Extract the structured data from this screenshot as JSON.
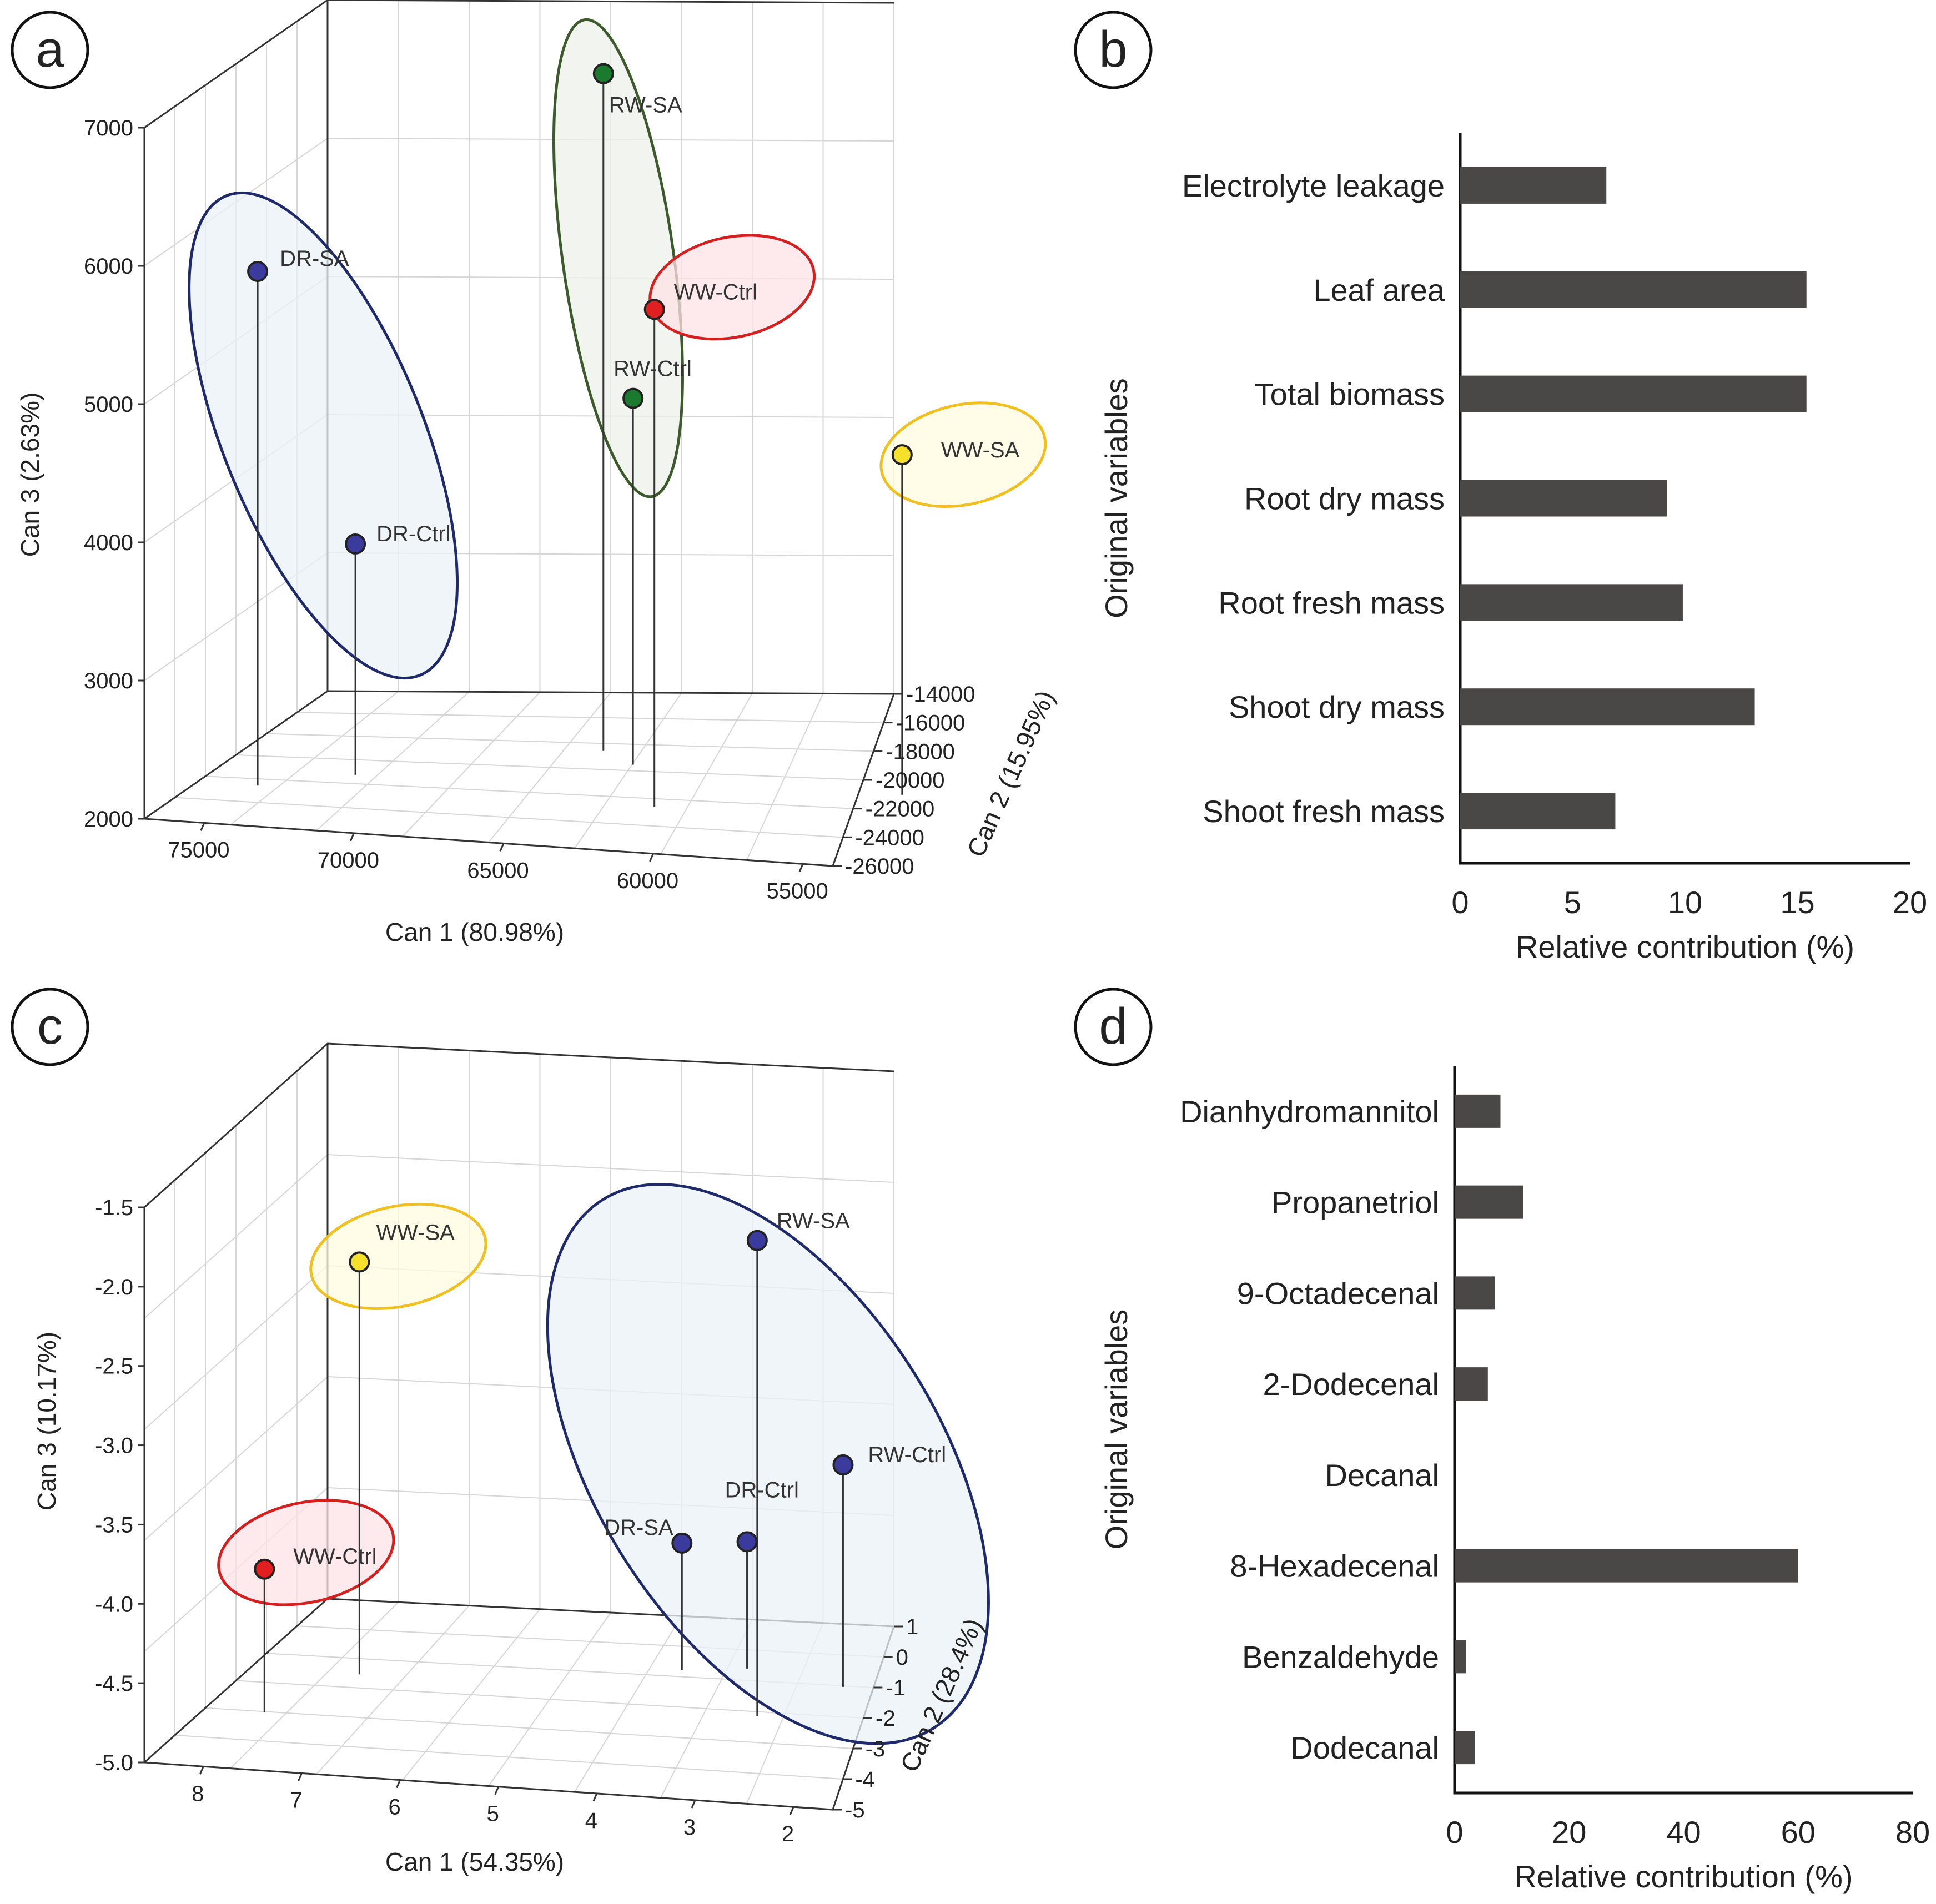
{
  "panels": [
    {
      "letter": "a",
      "chart_data": {
        "type": "scatter",
        "title": "",
        "xlabel": "Can 1 (80.98%)",
        "ylabel": "Can 3 (2.63%)",
        "zlabel": "Can 2 (15.95%)",
        "x_ticks": [
          "75000",
          "70000",
          "65000",
          "60000",
          "55000"
        ],
        "y_ticks": [
          "2000",
          "3000",
          "4000",
          "5000",
          "6000",
          "7000"
        ],
        "z_ticks": [
          "-26000",
          "-24000",
          "-22000",
          "-20000",
          "-18000",
          "-16000",
          "-14000"
        ],
        "xlim": [
          77000,
          54000
        ],
        "ylim": [
          2000,
          7000
        ],
        "zlim": [
          -26000,
          -14000
        ],
        "series": [
          {
            "name": "DR-SA",
            "can1": 75000,
            "can2": -22500,
            "can3": 5720,
            "color": "#3b3b9e"
          },
          {
            "name": "DR-Ctrl",
            "can1": 72500,
            "can2": -21000,
            "can3": 3670,
            "color": "#3b3b9e"
          },
          {
            "name": "RW-SA",
            "can1": 66000,
            "can2": -17500,
            "can3": 6900,
            "color": "#1a7a2e"
          },
          {
            "name": "RW-Ctrl",
            "can1": 64500,
            "can2": -18500,
            "can3": 4650,
            "color": "#1a7a2e"
          },
          {
            "name": "WW-Ctrl",
            "can1": 62000,
            "can2": -22000,
            "can3": 5600,
            "color": "#e02020"
          },
          {
            "name": "WW-SA",
            "can1": 55000,
            "can2": -19500,
            "can3": 4460,
            "color": "#f5e02a"
          }
        ],
        "groups": [
          {
            "members": [
              "DR-SA",
              "DR-Ctrl"
            ],
            "stroke": "#1f2a6b",
            "fill": "#eaf1f6"
          },
          {
            "members": [
              "RW-SA",
              "RW-Ctrl"
            ],
            "stroke": "#3c5a2c",
            "fill": "#eef0ea"
          },
          {
            "members": [
              "WW-Ctrl"
            ],
            "stroke": "#d62020",
            "fill": "#fde3e6"
          },
          {
            "members": [
              "WW-SA"
            ],
            "stroke": "#f0c020",
            "fill": "#fffbe0"
          }
        ]
      }
    },
    {
      "letter": "b",
      "chart_data": {
        "type": "bar",
        "orientation": "horizontal",
        "title": "",
        "categories": [
          "Electrolyte leakage",
          "Leaf area",
          "Total biomass",
          "Root dry mass",
          "Root fresh mass",
          "Shoot dry mass",
          "Shoot fresh mass"
        ],
        "values": [
          6.5,
          15.4,
          15.4,
          9.2,
          9.9,
          13.1,
          6.9
        ],
        "xlabel": "Relative contribution (%)",
        "ylabel": "Original variables",
        "xlim": [
          0,
          20
        ],
        "x_ticks": [
          "0",
          "5",
          "10",
          "15",
          "20"
        ],
        "bar_color": "#4a4847"
      }
    },
    {
      "letter": "c",
      "chart_data": {
        "type": "scatter",
        "title": "",
        "xlabel": "Can 1 (54.35%)",
        "ylabel": "Can 3 (10.17%)",
        "zlabel": "Can 2 (28.4%)",
        "x_ticks": [
          "8",
          "7",
          "6",
          "5",
          "4",
          "3",
          "2"
        ],
        "y_ticks": [
          "-5.0",
          "-4.5",
          "-4.0",
          "-3.5",
          "-3.0",
          "-2.5",
          "-2.0",
          "-1.5"
        ],
        "z_ticks": [
          "-5",
          "-4",
          "-3",
          "-2",
          "-1",
          "0",
          "1"
        ],
        "xlim": [
          8.6,
          1.6
        ],
        "ylim": [
          -5.0,
          -1.5
        ],
        "zlim": [
          -5,
          1
        ],
        "series": [
          {
            "name": "WW-SA",
            "can1": 7.5,
            "can2": -1.5,
            "can3": -2.4,
            "color": "#f5e02a"
          },
          {
            "name": "WW-Ctrl",
            "can1": 8.0,
            "can2": -3.0,
            "can3": -4.1,
            "color": "#e02020"
          },
          {
            "name": "RW-SA",
            "can1": 3.3,
            "can2": -2.0,
            "can3": -2.0,
            "color": "#3b3b9e"
          },
          {
            "name": "RW-Ctrl",
            "can1": 2.8,
            "can2": -0.8,
            "can3": -3.6,
            "color": "#3b3b9e"
          },
          {
            "name": "DR-SA",
            "can1": 4.5,
            "can2": -0.6,
            "can3": -4.2,
            "color": "#3b3b9e"
          },
          {
            "name": "DR-Ctrl",
            "can1": 3.9,
            "can2": -0.4,
            "can3": -4.2,
            "color": "#3b3b9e"
          }
        ],
        "groups": [
          {
            "members": [
              "WW-SA"
            ],
            "stroke": "#f0c020",
            "fill": "#fffbe0"
          },
          {
            "members": [
              "WW-Ctrl"
            ],
            "stroke": "#d62020",
            "fill": "#fde3e6"
          },
          {
            "members": [
              "RW-SA",
              "RW-Ctrl",
              "DR-SA",
              "DR-Ctrl"
            ],
            "stroke": "#1f2a6b",
            "fill": "#eaf1f6"
          }
        ]
      }
    },
    {
      "letter": "d",
      "chart_data": {
        "type": "bar",
        "orientation": "horizontal",
        "title": "",
        "categories": [
          "Dianhydromannitol",
          "Propanetriol",
          "9-Octadecenal",
          "2-Dodecenal",
          "Decanal",
          "8-Hexadecenal",
          "Benzaldehyde",
          "Dodecanal"
        ],
        "values": [
          8,
          12,
          7,
          5.8,
          0,
          60,
          2,
          3.5
        ],
        "xlabel": "Relative contribution (%)",
        "ylabel": "Original variables",
        "xlim": [
          0,
          80
        ],
        "x_ticks": [
          "0",
          "20",
          "40",
          "60",
          "80"
        ],
        "bar_color": "#4a4847"
      }
    }
  ]
}
